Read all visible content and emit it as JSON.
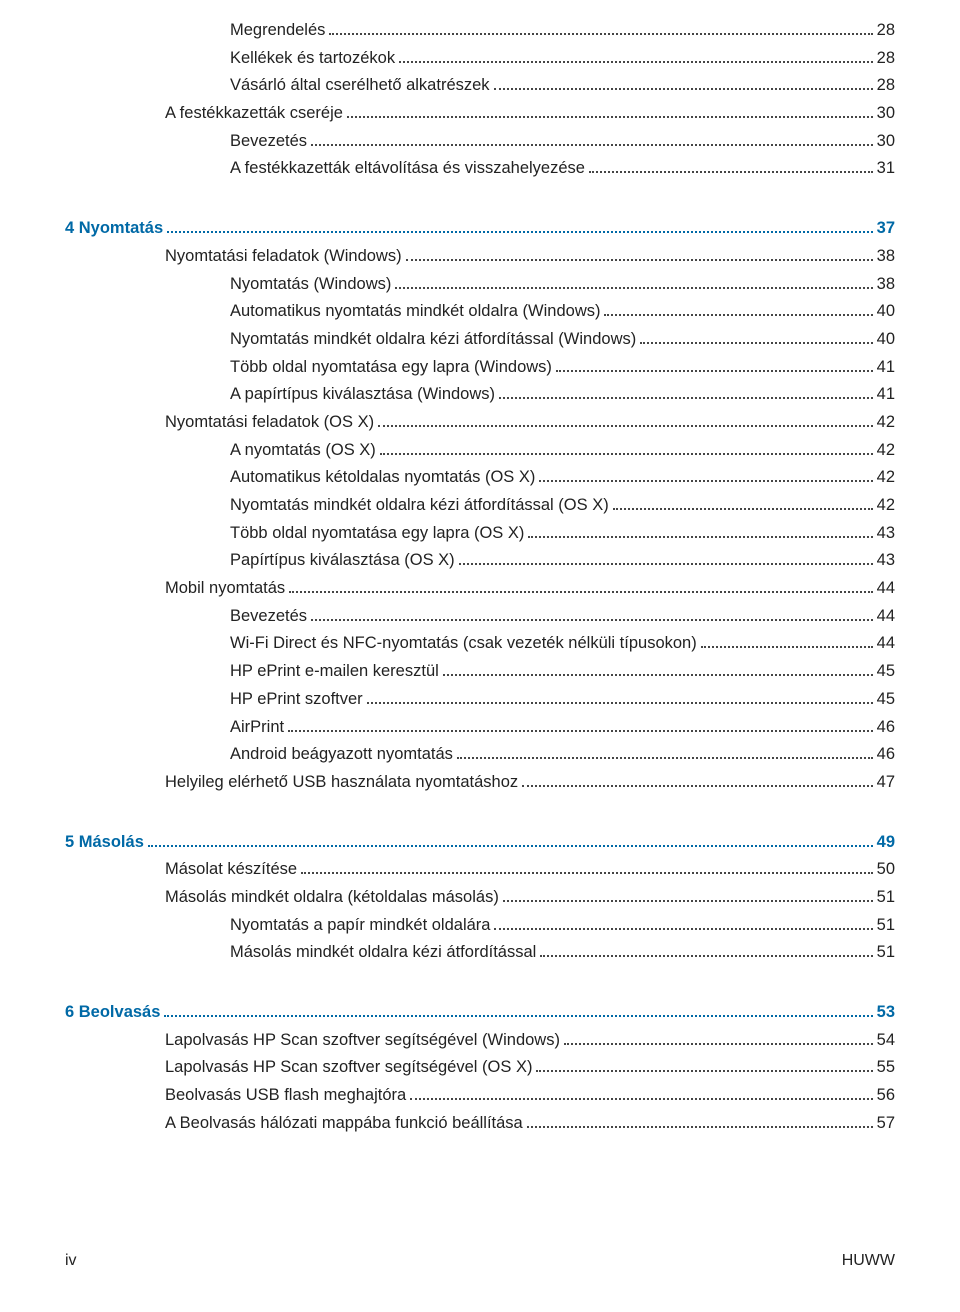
{
  "font": {
    "body_size_pt": 12,
    "chapter_color": "#0069a6",
    "text_color": "#222222"
  },
  "footer": {
    "left": "iv",
    "right": "HUWW"
  },
  "entries": [
    {
      "label": "Megrendelés",
      "page": "28",
      "indent": "ind3",
      "chapter": false
    },
    {
      "label": "Kellékek és tartozékok",
      "page": "28",
      "indent": "ind3",
      "chapter": false
    },
    {
      "label": "Vásárló által cserélhető alkatrészek",
      "page": "28",
      "indent": "ind3",
      "chapter": false
    },
    {
      "label": "A festékkazetták cseréje",
      "page": "30",
      "indent": "ind1",
      "chapter": false
    },
    {
      "label": "Bevezetés",
      "page": "30",
      "indent": "ind3",
      "chapter": false
    },
    {
      "label": "A festékkazetták eltávolítása és visszahelyezése",
      "page": "31",
      "indent": "ind3",
      "chapter": false
    },
    {
      "gap": true
    },
    {
      "label": "4  Nyomtatás",
      "page": "37",
      "indent": "ch",
      "chapter": true
    },
    {
      "label": "Nyomtatási feladatok (Windows)",
      "page": "38",
      "indent": "ind1",
      "chapter": false
    },
    {
      "label": "Nyomtatás (Windows)",
      "page": "38",
      "indent": "ind3",
      "chapter": false
    },
    {
      "label": "Automatikus nyomtatás mindkét oldalra (Windows)",
      "page": "40",
      "indent": "ind3",
      "chapter": false
    },
    {
      "label": "Nyomtatás mindkét oldalra kézi átfordítással (Windows)",
      "page": "40",
      "indent": "ind3",
      "chapter": false
    },
    {
      "label": "Több oldal nyomtatása egy lapra (Windows)",
      "page": "41",
      "indent": "ind3",
      "chapter": false
    },
    {
      "label": "A papírtípus kiválasztása (Windows)",
      "page": "41",
      "indent": "ind3",
      "chapter": false
    },
    {
      "label": "Nyomtatási feladatok (OS X)",
      "page": "42",
      "indent": "ind1",
      "chapter": false
    },
    {
      "label": "A nyomtatás (OS X)",
      "page": "42",
      "indent": "ind3",
      "chapter": false
    },
    {
      "label": "Automatikus kétoldalas nyomtatás (OS X)",
      "page": "42",
      "indent": "ind3",
      "chapter": false
    },
    {
      "label": "Nyomtatás mindkét oldalra kézi átfordítással (OS X)",
      "page": "42",
      "indent": "ind3",
      "chapter": false
    },
    {
      "label": "Több oldal nyomtatása egy lapra (OS X)",
      "page": "43",
      "indent": "ind3",
      "chapter": false
    },
    {
      "label": "Papírtípus kiválasztása (OS X)",
      "page": "43",
      "indent": "ind3",
      "chapter": false
    },
    {
      "label": "Mobil nyomtatás",
      "page": "44",
      "indent": "ind1",
      "chapter": false
    },
    {
      "label": "Bevezetés",
      "page": "44",
      "indent": "ind3",
      "chapter": false
    },
    {
      "label": "Wi-Fi Direct és NFC-nyomtatás (csak vezeték nélküli típusokon)",
      "page": "44",
      "indent": "ind3",
      "chapter": false
    },
    {
      "label": "HP ePrint e-mailen keresztül",
      "page": "45",
      "indent": "ind3",
      "chapter": false
    },
    {
      "label": "HP ePrint szoftver",
      "page": "45",
      "indent": "ind3",
      "chapter": false
    },
    {
      "label": "AirPrint",
      "page": "46",
      "indent": "ind3",
      "chapter": false
    },
    {
      "label": "Android beágyazott nyomtatás",
      "page": "46",
      "indent": "ind3",
      "chapter": false
    },
    {
      "label": "Helyileg elérhető USB használata nyomtatáshoz",
      "page": "47",
      "indent": "ind1",
      "chapter": false
    },
    {
      "gap": true
    },
    {
      "label": "5  Másolás",
      "page": "49",
      "indent": "ch",
      "chapter": true
    },
    {
      "label": "Másolat készítése",
      "page": "50",
      "indent": "ind1",
      "chapter": false
    },
    {
      "label": "Másolás mindkét oldalra (kétoldalas másolás)",
      "page": "51",
      "indent": "ind1",
      "chapter": false
    },
    {
      "label": "Nyomtatás a papír mindkét oldalára",
      "page": "51",
      "indent": "ind3",
      "chapter": false
    },
    {
      "label": "Másolás mindkét oldalra kézi átfordítással",
      "page": "51",
      "indent": "ind3",
      "chapter": false
    },
    {
      "gap": true
    },
    {
      "label": "6  Beolvasás",
      "page": "53",
      "indent": "ch",
      "chapter": true
    },
    {
      "label": "Lapolvasás HP Scan szoftver segítségével (Windows)",
      "page": "54",
      "indent": "ind1",
      "chapter": false
    },
    {
      "label": "Lapolvasás HP Scan szoftver segítségével (OS X)",
      "page": "55",
      "indent": "ind1",
      "chapter": false
    },
    {
      "label": "Beolvasás USB flash meghajtóra",
      "page": "56",
      "indent": "ind1",
      "chapter": false
    },
    {
      "label": "A Beolvasás hálózati mappába funkció beállítása",
      "page": "57",
      "indent": "ind1",
      "chapter": false
    }
  ]
}
